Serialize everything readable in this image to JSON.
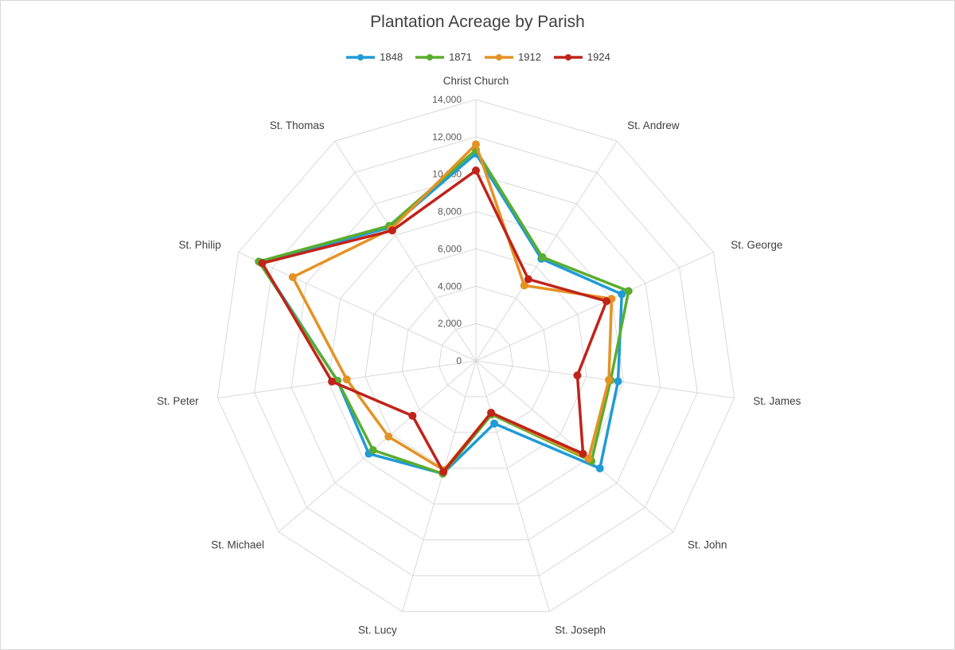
{
  "chart_data": {
    "type": "radar",
    "title": "Plantation Acreage by Parish",
    "categories": [
      "Christ Church",
      "St. Andrew",
      "St. George",
      "St. James",
      "St. John",
      "St. Joseph",
      "St. Lucy",
      "St. Michael",
      "St. Peter",
      "St. Philip",
      "St. Thomas"
    ],
    "ylim": [
      0,
      14000
    ],
    "ticks": [
      0,
      2000,
      4000,
      6000,
      8000,
      10000,
      12000,
      14000
    ],
    "tick_labels": [
      "0",
      "2,000",
      "4,000",
      "6,000",
      "8,000",
      "10,000",
      "12,000",
      "14,000"
    ],
    "grid": true,
    "legend_position": "top",
    "series": [
      {
        "name": "1848",
        "color": "#1f9bd7",
        "values": [
          11100,
          6500,
          8600,
          7700,
          8800,
          3500,
          6300,
          7600,
          7500,
          12700,
          8500
        ]
      },
      {
        "name": "1871",
        "color": "#5aad2f",
        "values": [
          11300,
          6600,
          9000,
          7300,
          8200,
          3000,
          6300,
          7300,
          7500,
          12800,
          8600
        ]
      },
      {
        "name": "1912",
        "color": "#e59223",
        "values": [
          11600,
          4800,
          8000,
          7200,
          8000,
          2900,
          6100,
          6200,
          7000,
          10800,
          8400
        ]
      },
      {
        "name": "1924",
        "color": "#c0231a",
        "values": [
          10200,
          5200,
          7700,
          5500,
          7600,
          2900,
          6200,
          4500,
          7800,
          12600,
          8300
        ]
      }
    ]
  }
}
